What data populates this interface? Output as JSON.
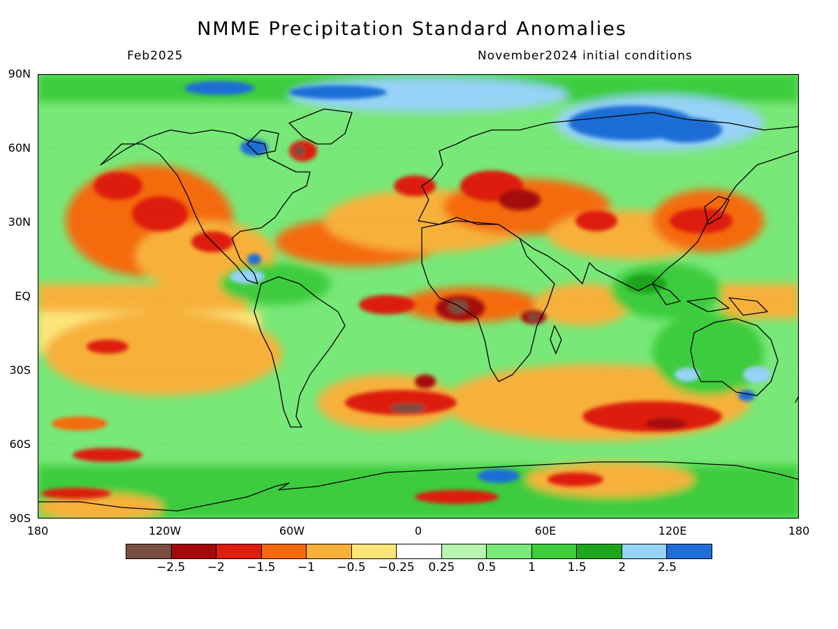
{
  "title": "NMME Precipitation Standard Anomalies",
  "valid_month": "Feb2025",
  "initial_conditions": "November2024 initial conditions",
  "lat_labels": [
    "90N",
    "60N",
    "30N",
    "EQ",
    "30S",
    "60S",
    "90S"
  ],
  "lon_labels": [
    "180",
    "120W",
    "60W",
    "0",
    "60E",
    "120E",
    "180"
  ],
  "colorbar": {
    "colors": [
      "#7a4e40",
      "#a50a0a",
      "#dd1e10",
      "#f56a10",
      "#f7b13b",
      "#fde57a",
      "#ffffff",
      "#b8f5b0",
      "#78e878",
      "#3ccc3c",
      "#1ea51e",
      "#96d3f6",
      "#1f6ed6"
    ],
    "labels": [
      "−2.5",
      "−2",
      "−1.5",
      "−1",
      "−0.5",
      "−0.25",
      "0.25",
      "0.5",
      "1",
      "1.5",
      "2",
      "2.5"
    ]
  },
  "anomaly_regions": [
    {
      "name": "arctic-wet",
      "lon": -90,
      "lat": 80,
      "value": 2.5
    },
    {
      "name": "siberia-wet",
      "lon": 110,
      "lat": 70,
      "value": 2.5
    },
    {
      "name": "ne-pacific-dry",
      "lon": -140,
      "lat": 40,
      "value": -1.5
    },
    {
      "name": "atlantic-subtropics-dry",
      "lon": -30,
      "lat": 35,
      "value": -1
    },
    {
      "name": "mediterranean-dry",
      "lon": 30,
      "lat": 38,
      "value": -2
    },
    {
      "name": "japan-dry",
      "lon": 140,
      "lat": 35,
      "value": -1.5
    },
    {
      "name": "equatorial-pacific-dry",
      "lon": -130,
      "lat": 0,
      "value": -0.5
    },
    {
      "name": "central-africa-dry",
      "lon": 20,
      "lat": -5,
      "value": -2.5
    },
    {
      "name": "maritime-continent-wet",
      "lon": 120,
      "lat": 5,
      "value": 1.5
    },
    {
      "name": "australia-wet",
      "lon": 135,
      "lat": -25,
      "value": 1.5
    },
    {
      "name": "south-atlantic-dry",
      "lon": 0,
      "lat": -40,
      "value": -2.5
    },
    {
      "name": "south-indian-dry",
      "lon": 90,
      "lat": -45,
      "value": -2
    },
    {
      "name": "south-pacific-dry",
      "lon": -150,
      "lat": -25,
      "value": -1
    },
    {
      "name": "antarctic-coast-wet",
      "lon": 30,
      "lat": -72,
      "value": 2
    }
  ]
}
